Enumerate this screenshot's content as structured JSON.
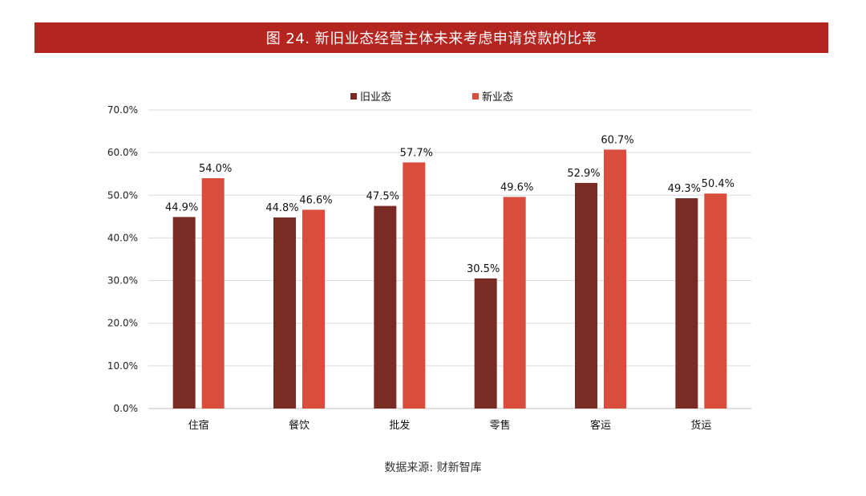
{
  "header": {
    "title": "图 24. 新旧业态经营主体未来考虑申请贷款的比率"
  },
  "footer": {
    "source": "数据来源: 财新智库"
  },
  "chart_data": {
    "type": "bar",
    "title": "",
    "xlabel": "",
    "ylabel": "",
    "categories": [
      "住宿",
      "餐饮",
      "批发",
      "零售",
      "客运",
      "货运"
    ],
    "series": [
      {
        "name": "旧业态",
        "values": [
          44.9,
          44.8,
          47.5,
          30.5,
          52.9,
          49.3
        ],
        "color": "#7a2c24"
      },
      {
        "name": "新业态",
        "values": [
          54.0,
          46.6,
          57.7,
          49.6,
          60.7,
          50.4
        ],
        "color": "#d84d3c"
      }
    ],
    "ylim": [
      0,
      70
    ],
    "yticks": [
      "0.0%",
      "10.0%",
      "20.0%",
      "30.0%",
      "40.0%",
      "50.0%",
      "60.0%",
      "70.0%"
    ],
    "data_labels": [
      [
        "44.9%",
        "44.8%",
        "47.5%",
        "30.5%",
        "52.9%",
        "49.3%"
      ],
      [
        "54.0%",
        "46.6%",
        "57.7%",
        "49.6%",
        "60.7%",
        "50.4%"
      ]
    ],
    "grid": true,
    "legend_position": "top-center"
  }
}
